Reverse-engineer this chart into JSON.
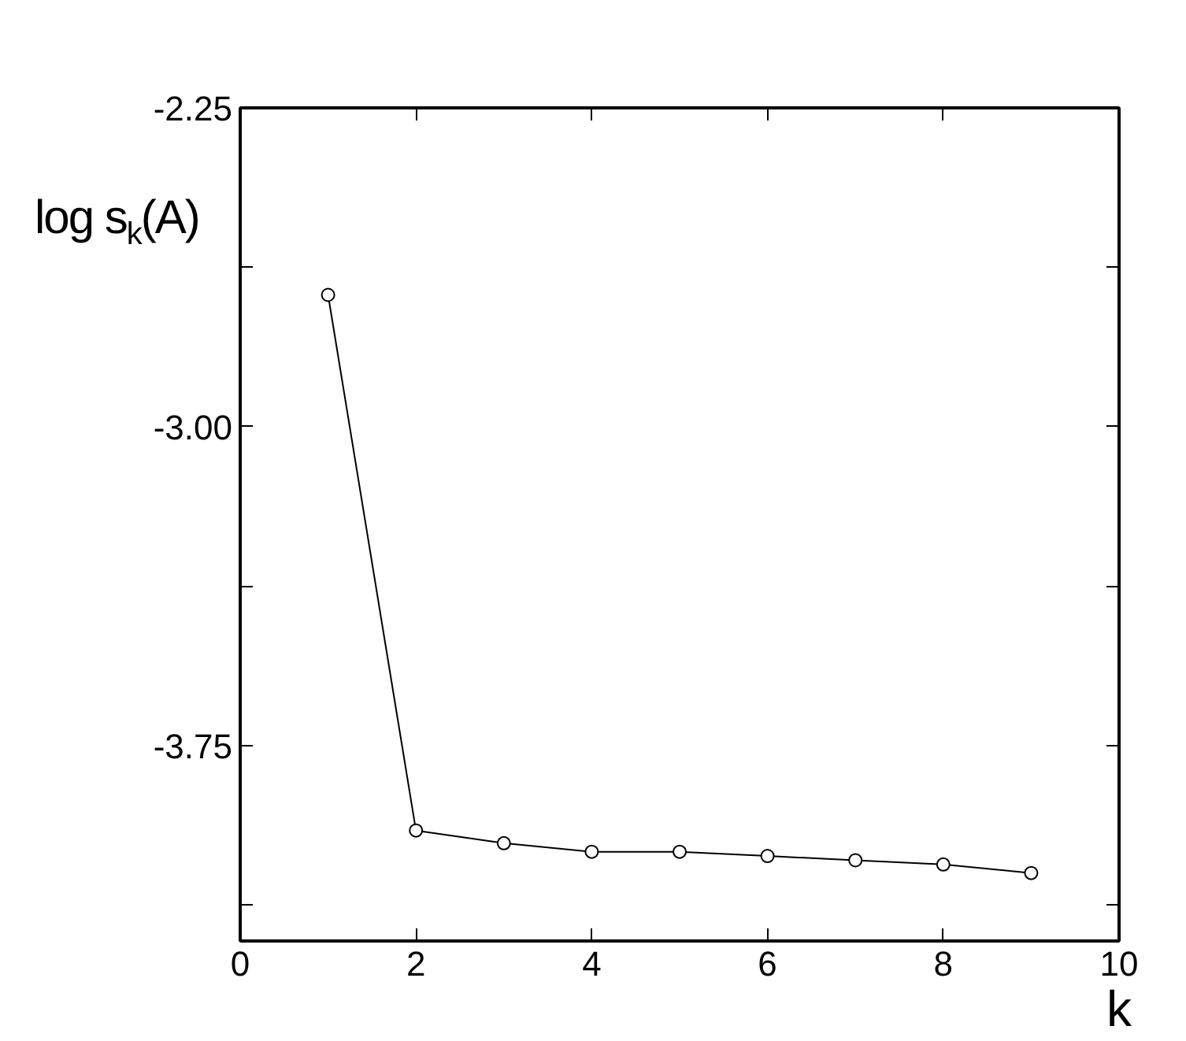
{
  "chart_data": {
    "type": "line",
    "xlabel": "k",
    "ylabel": "log s$_{k}$(A)",
    "x": [
      1,
      2,
      3,
      4,
      5,
      6,
      7,
      8,
      9
    ],
    "series": [
      {
        "color": "#000000",
        "values": [
          -2.69,
          -3.95,
          -3.98,
          -4.0,
          -4.0,
          -4.01,
          -4.02,
          -4.03,
          -4.05
        ]
      }
    ],
    "xlim": [
      0,
      10
    ],
    "xticks": [
      0,
      2,
      4,
      6,
      8,
      10
    ],
    "ylim": [
      -4.21,
      -2.25
    ],
    "yticks": [
      {
        "value": -2.25,
        "label": "-2.25"
      },
      {
        "value": -2.625,
        "label": null
      },
      {
        "value": -3.0,
        "label": "-3.00"
      },
      {
        "value": -3.375,
        "label": null
      },
      {
        "value": -3.75,
        "label": "-3.75"
      },
      {
        "value": -4.125,
        "label": null
      }
    ],
    "marker": "circle",
    "line_style": "solid",
    "grid": false,
    "legend": false
  }
}
